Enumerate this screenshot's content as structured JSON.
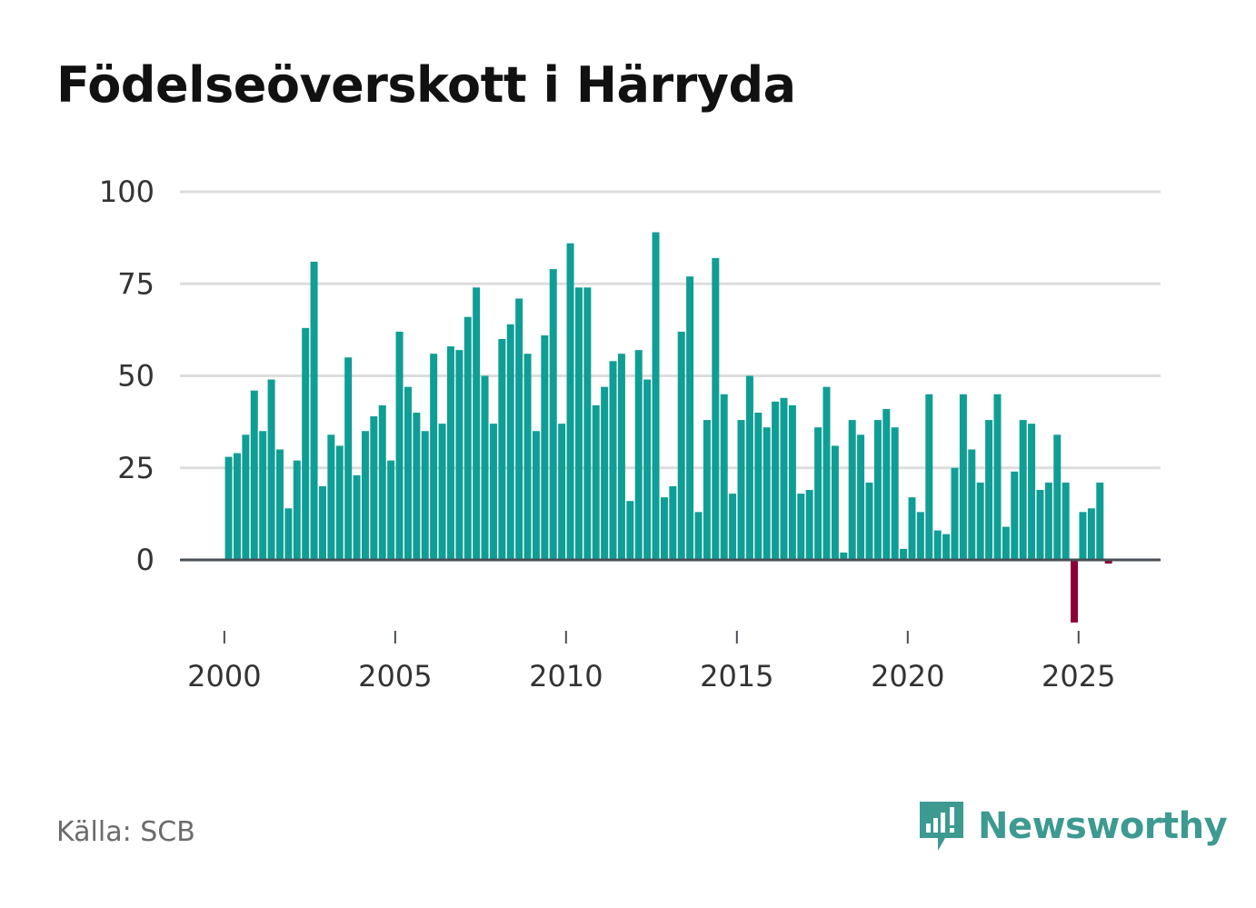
{
  "chart_data": {
    "type": "bar",
    "title": "Födelseöverskott i Härryda",
    "xlabel": "",
    "ylabel": "",
    "ylim": [
      -20,
      100
    ],
    "y_ticks": [
      0,
      25,
      50,
      75,
      100
    ],
    "x_ticks": [
      2000,
      2005,
      2010,
      2015,
      2020,
      2025
    ],
    "x_range": [
      1998.7,
      2027.4
    ],
    "grid": true,
    "legend": "none",
    "series": [
      {
        "name": "Födelseöverskott",
        "values": [
          {
            "x": 2000.125,
            "y": 28
          },
          {
            "x": 2000.375,
            "y": 29
          },
          {
            "x": 2000.625,
            "y": 34
          },
          {
            "x": 2000.875,
            "y": 46
          },
          {
            "x": 2001.125,
            "y": 35
          },
          {
            "x": 2001.375,
            "y": 49
          },
          {
            "x": 2001.625,
            "y": 30
          },
          {
            "x": 2001.875,
            "y": 14
          },
          {
            "x": 2002.125,
            "y": 27
          },
          {
            "x": 2002.375,
            "y": 63
          },
          {
            "x": 2002.625,
            "y": 81
          },
          {
            "x": 2002.875,
            "y": 20
          },
          {
            "x": 2003.125,
            "y": 34
          },
          {
            "x": 2003.375,
            "y": 31
          },
          {
            "x": 2003.625,
            "y": 55
          },
          {
            "x": 2003.875,
            "y": 23
          },
          {
            "x": 2004.125,
            "y": 35
          },
          {
            "x": 2004.375,
            "y": 39
          },
          {
            "x": 2004.625,
            "y": 42
          },
          {
            "x": 2004.875,
            "y": 27
          },
          {
            "x": 2005.125,
            "y": 62
          },
          {
            "x": 2005.375,
            "y": 47
          },
          {
            "x": 2005.625,
            "y": 40
          },
          {
            "x": 2005.875,
            "y": 35
          },
          {
            "x": 2006.125,
            "y": 56
          },
          {
            "x": 2006.375,
            "y": 37
          },
          {
            "x": 2006.625,
            "y": 58
          },
          {
            "x": 2006.875,
            "y": 57
          },
          {
            "x": 2007.125,
            "y": 66
          },
          {
            "x": 2007.375,
            "y": 74
          },
          {
            "x": 2007.625,
            "y": 50
          },
          {
            "x": 2007.875,
            "y": 37
          },
          {
            "x": 2008.125,
            "y": 60
          },
          {
            "x": 2008.375,
            "y": 64
          },
          {
            "x": 2008.625,
            "y": 71
          },
          {
            "x": 2008.875,
            "y": 56
          },
          {
            "x": 2009.125,
            "y": 35
          },
          {
            "x": 2009.375,
            "y": 61
          },
          {
            "x": 2009.625,
            "y": 79
          },
          {
            "x": 2009.875,
            "y": 37
          },
          {
            "x": 2010.125,
            "y": 86
          },
          {
            "x": 2010.375,
            "y": 74
          },
          {
            "x": 2010.625,
            "y": 74
          },
          {
            "x": 2010.875,
            "y": 42
          },
          {
            "x": 2011.125,
            "y": 47
          },
          {
            "x": 2011.375,
            "y": 54
          },
          {
            "x": 2011.625,
            "y": 56
          },
          {
            "x": 2011.875,
            "y": 16
          },
          {
            "x": 2012.125,
            "y": 57
          },
          {
            "x": 2012.375,
            "y": 49
          },
          {
            "x": 2012.625,
            "y": 89
          },
          {
            "x": 2012.875,
            "y": 17
          },
          {
            "x": 2013.125,
            "y": 20
          },
          {
            "x": 2013.375,
            "y": 62
          },
          {
            "x": 2013.625,
            "y": 77
          },
          {
            "x": 2013.875,
            "y": 13
          },
          {
            "x": 2014.125,
            "y": 38
          },
          {
            "x": 2014.375,
            "y": 82
          },
          {
            "x": 2014.625,
            "y": 45
          },
          {
            "x": 2014.875,
            "y": 18
          },
          {
            "x": 2015.125,
            "y": 38
          },
          {
            "x": 2015.375,
            "y": 50
          },
          {
            "x": 2015.625,
            "y": 40
          },
          {
            "x": 2015.875,
            "y": 36
          },
          {
            "x": 2016.125,
            "y": 43
          },
          {
            "x": 2016.375,
            "y": 44
          },
          {
            "x": 2016.625,
            "y": 42
          },
          {
            "x": 2016.875,
            "y": 18
          },
          {
            "x": 2017.125,
            "y": 19
          },
          {
            "x": 2017.375,
            "y": 36
          },
          {
            "x": 2017.625,
            "y": 47
          },
          {
            "x": 2017.875,
            "y": 31
          },
          {
            "x": 2018.125,
            "y": 2
          },
          {
            "x": 2018.375,
            "y": 38
          },
          {
            "x": 2018.625,
            "y": 34
          },
          {
            "x": 2018.875,
            "y": 21
          },
          {
            "x": 2019.125,
            "y": 38
          },
          {
            "x": 2019.375,
            "y": 41
          },
          {
            "x": 2019.625,
            "y": 36
          },
          {
            "x": 2019.875,
            "y": 3
          },
          {
            "x": 2020.125,
            "y": 17
          },
          {
            "x": 2020.375,
            "y": 13
          },
          {
            "x": 2020.625,
            "y": 45
          },
          {
            "x": 2020.875,
            "y": 8
          },
          {
            "x": 2021.125,
            "y": 7
          },
          {
            "x": 2021.375,
            "y": 25
          },
          {
            "x": 2021.625,
            "y": 45
          },
          {
            "x": 2021.875,
            "y": 30
          },
          {
            "x": 2022.125,
            "y": 21
          },
          {
            "x": 2022.375,
            "y": 38
          },
          {
            "x": 2022.625,
            "y": 45
          },
          {
            "x": 2022.875,
            "y": 9
          },
          {
            "x": 2023.125,
            "y": 24
          },
          {
            "x": 2023.375,
            "y": 38
          },
          {
            "x": 2023.625,
            "y": 37
          },
          {
            "x": 2023.875,
            "y": 19
          },
          {
            "x": 2024.125,
            "y": 21
          },
          {
            "x": 2024.375,
            "y": 34
          },
          {
            "x": 2024.625,
            "y": 21
          },
          {
            "x": 2024.875,
            "y": -17
          },
          {
            "x": 2025.125,
            "y": 13
          },
          {
            "x": 2025.375,
            "y": 14
          },
          {
            "x": 2025.625,
            "y": 21
          },
          {
            "x": 2025.875,
            "y": -1
          }
        ]
      }
    ]
  },
  "colors": {
    "positive": "#0f9e95",
    "negative": "#8c0038",
    "gridline": "#dddddd",
    "zero_line": "#4a4f55",
    "brand": "#3c9a91"
  },
  "footer": {
    "source": "Källa: SCB",
    "brand": "Newsworthy"
  }
}
